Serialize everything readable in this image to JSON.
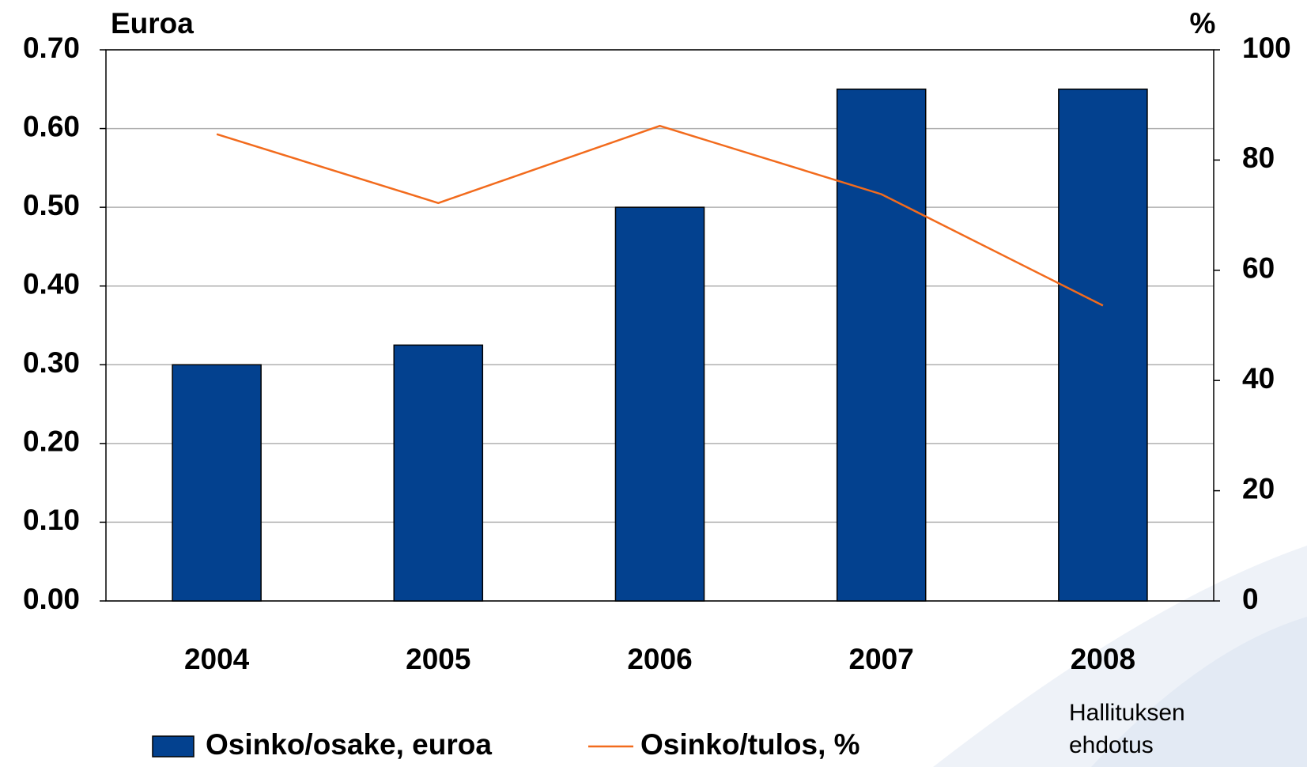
{
  "chart_data": {
    "type": "bar-line",
    "y_label": "Euroa",
    "y2_label": "%",
    "categories": [
      "2004",
      "2005",
      "2006",
      "2007",
      "2008"
    ],
    "series": [
      {
        "name": "Osinko/osake, euroa",
        "color": "#03418f",
        "type": "bar",
        "values": [
          0.3,
          0.325,
          0.5,
          0.65,
          0.65
        ]
      },
      {
        "name": "Osinko/tulos, %",
        "color": "#f26b1d",
        "type": "line",
        "axis": "y2",
        "values": [
          84.7,
          72.2,
          86.2,
          73.8,
          53.6
        ]
      }
    ],
    "ylim": [
      0,
      0.7
    ],
    "yticks": [
      {
        "value": 0,
        "label": "0.00"
      },
      {
        "value": 0.1,
        "label": "0.10"
      },
      {
        "value": 0.2,
        "label": "0.20"
      },
      {
        "value": 0.3,
        "label": "0.30"
      },
      {
        "value": 0.4,
        "label": "0.40"
      },
      {
        "value": 0.5,
        "label": "0.50"
      },
      {
        "value": 0.6,
        "label": "0.60"
      },
      {
        "value": 0.7,
        "label": "0.70"
      }
    ],
    "y2lim": [
      0,
      100
    ],
    "y2ticks": [
      0,
      20,
      40,
      60,
      80,
      100
    ],
    "annotation": [
      "Hallituksen",
      "ehdotus"
    ],
    "grid": true,
    "legend": "bottom"
  }
}
